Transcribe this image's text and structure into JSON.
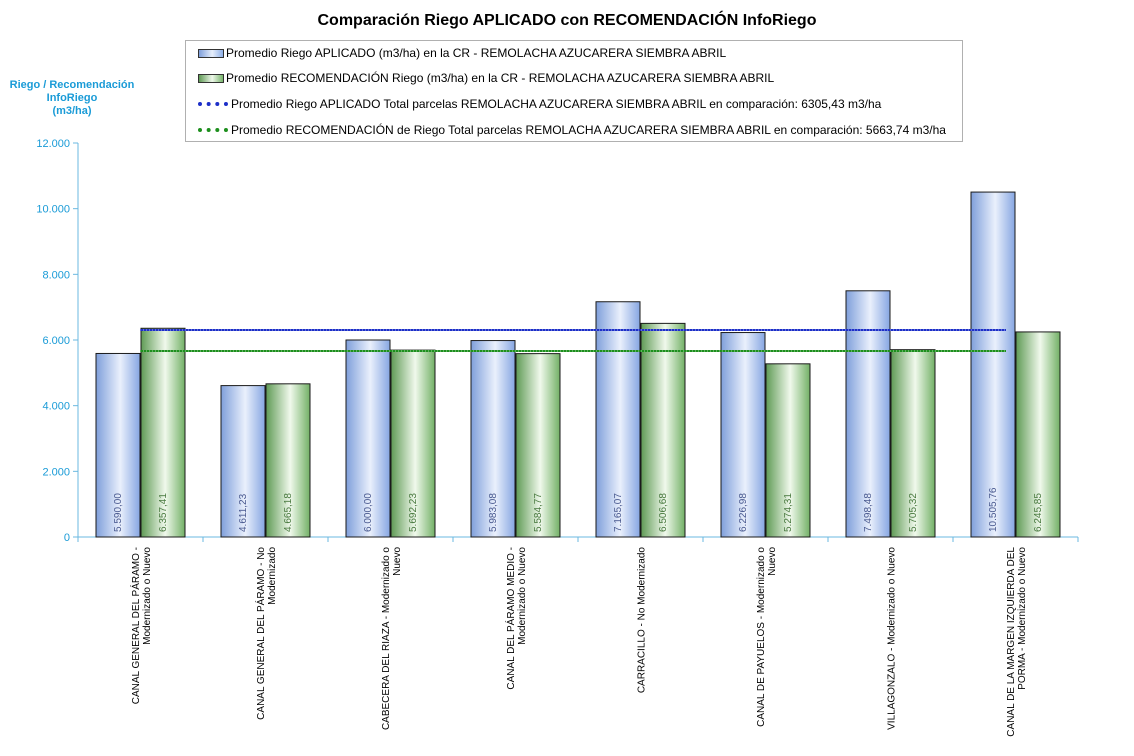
{
  "chart_data": {
    "type": "bar",
    "title": "Comparación Riego APLICADO con RECOMENDACIÓN InfoRiego",
    "ylabel_lines": [
      "Riego / Recomendación",
      "InfoRiego",
      "(m3/ha)"
    ],
    "xlabel": "",
    "ylim": [
      0,
      12000
    ],
    "yticks": [
      0,
      2000,
      4000,
      6000,
      8000,
      10000,
      12000
    ],
    "ytick_labels": [
      "0",
      "2.000",
      "4.000",
      "6.000",
      "8.000",
      "10.000",
      "12.000"
    ],
    "categories": [
      [
        "CANAL GENERAL DEL PÁRAMO -",
        "Modernizado o Nuevo"
      ],
      [
        "CANAL GENERAL DEL PÁRAMO - No",
        "Modernizado"
      ],
      [
        "CABECERA DEL RIAZA - Modernizado o",
        "Nuevo"
      ],
      [
        "CANAL DEL PÁRAMO MEDIO -",
        "Modernizado o Nuevo"
      ],
      [
        "CARRACILLO - No Modernizado"
      ],
      [
        "CANAL DE PAYUELOS - Modernizado o",
        "Nuevo"
      ],
      [
        "VILLAGONZALO - Modernizado o Nuevo"
      ],
      [
        "CANAL DE LA MARGEN IZQUIERDA DEL",
        "PORMA - Modernizado o Nuevo"
      ]
    ],
    "series": [
      {
        "name": "Promedio Riego APLICADO (m3/ha) en la CR - REMOLACHA AZUCARERA SIEMBRA ABRIL",
        "color": "#7f9fdb",
        "values": [
          5590.0,
          4611.23,
          6000.0,
          5983.08,
          7165.07,
          6226.98,
          7498.48,
          10505.76
        ],
        "labels": [
          "5.590,00",
          "4.611,23",
          "6.000,00",
          "5.983,08",
          "7.165,07",
          "6.226,98",
          "7.498,48",
          "10.505,76"
        ]
      },
      {
        "name": "Promedio RECOMENDACIÓN Riego (m3/ha) en la CR - REMOLACHA AZUCARERA SIEMBRA ABRIL",
        "color": "#5f9a55",
        "values": [
          6357.41,
          4665.18,
          5692.23,
          5584.77,
          6506.68,
          5274.31,
          5705.32,
          6245.85
        ],
        "labels": [
          "6.357,41",
          "4.665,18",
          "5.692,23",
          "5.584,77",
          "6.506,68",
          "5.274,31",
          "5.705,32",
          "6.245,85"
        ]
      }
    ],
    "reference_lines": [
      {
        "name": "Promedio Riego APLICADO Total parcelas REMOLACHA AZUCARERA SIEMBRA ABRIL en comparación: 6305,43 m3/ha",
        "value": 6305.43,
        "color": "#1d2fc8"
      },
      {
        "name": "Promedio RECOMENDACIÓN de Riego Total parcelas REMOLACHA AZUCARERA SIEMBRA ABRIL en comparación: 5663,74 m3/ha",
        "value": 5663.74,
        "color": "#1d8f1d"
      }
    ],
    "legend_position": "top"
  }
}
